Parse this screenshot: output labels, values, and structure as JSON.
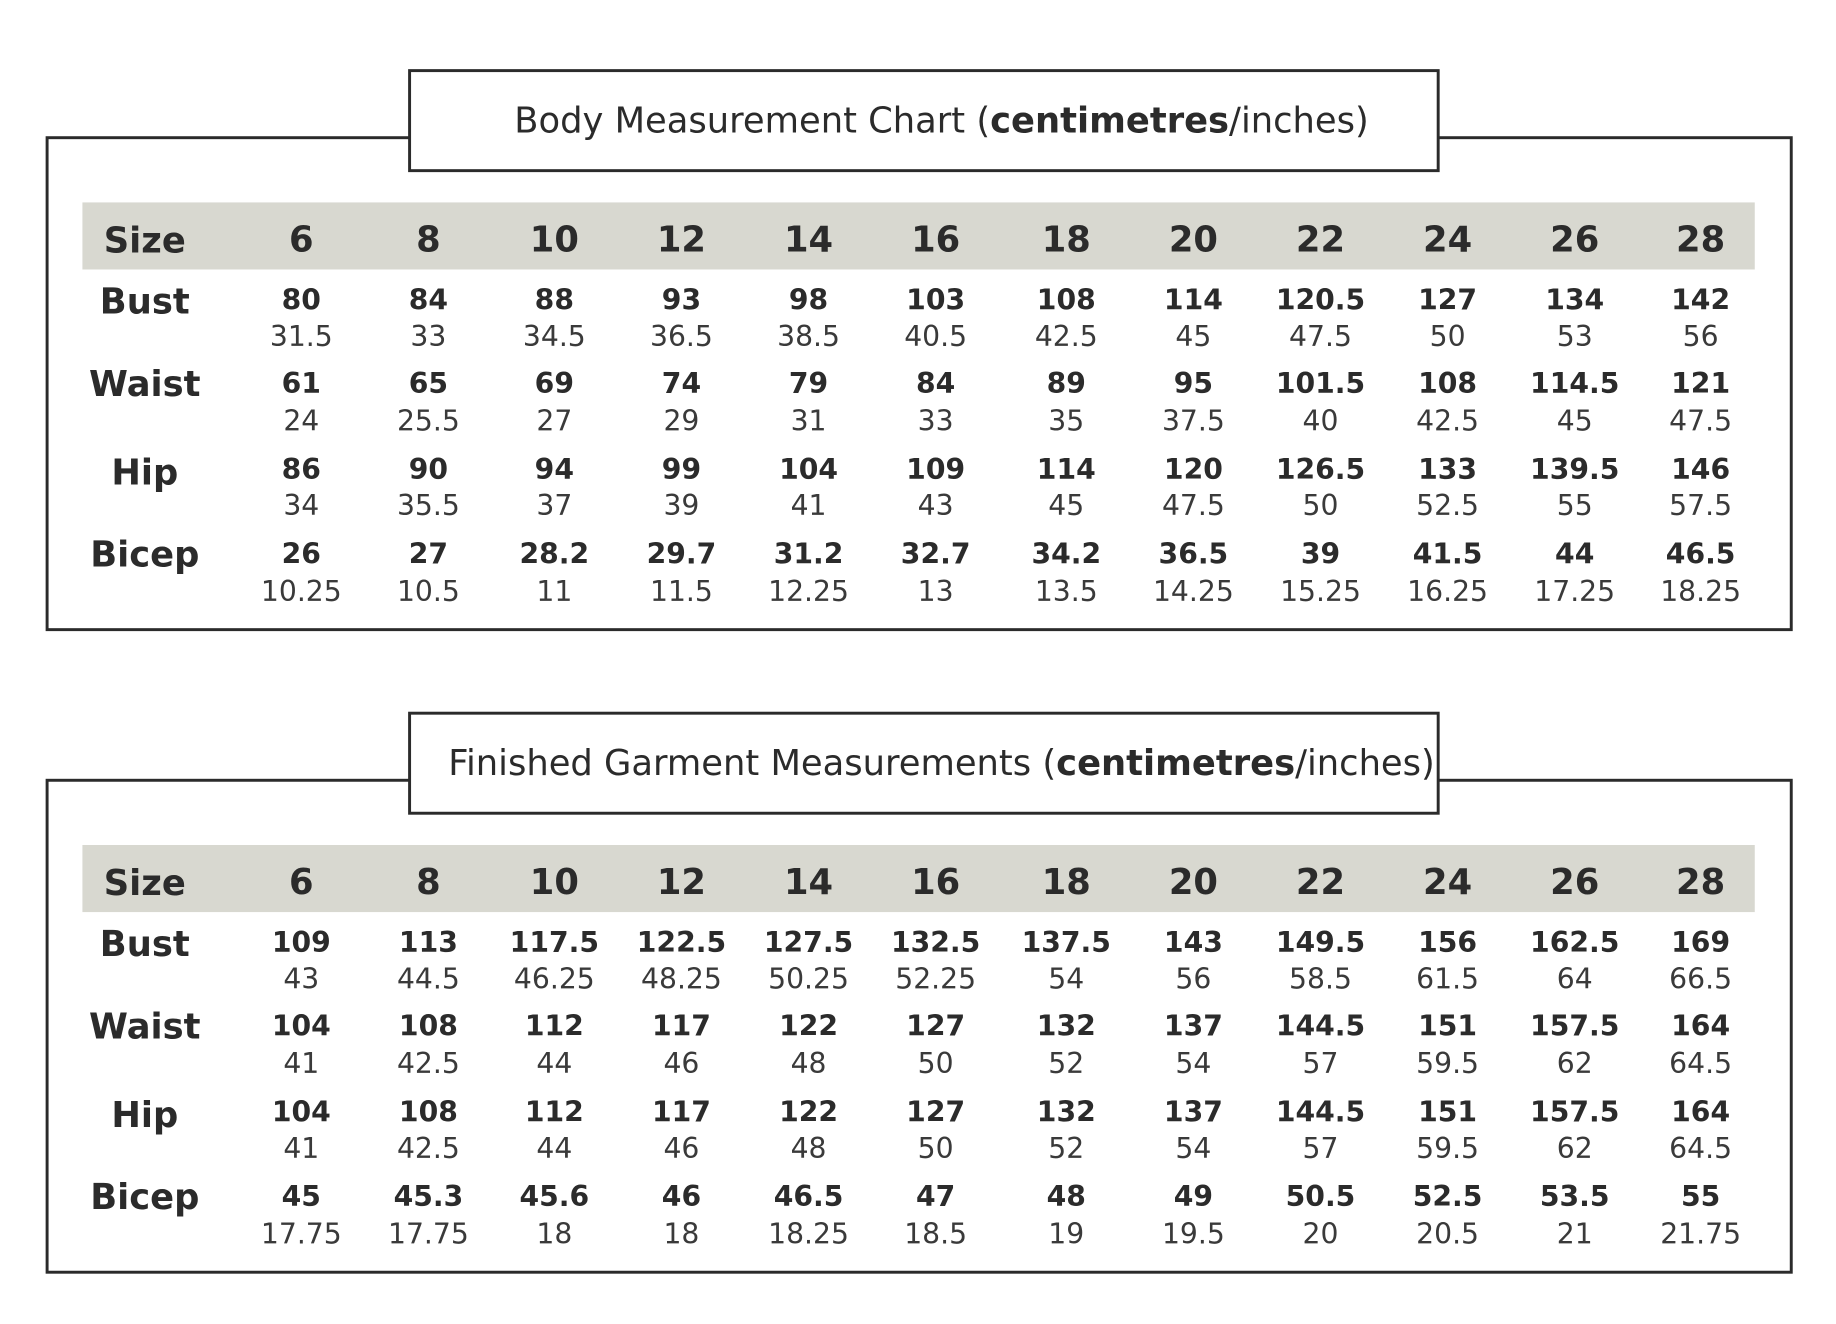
{
  "tables": [
    {
      "title": {
        "pre": "Body Measurement Chart (",
        "bold": "centimetres",
        "post": "/inches)"
      },
      "header_label": "Size",
      "sizes": [
        6,
        8,
        10,
        12,
        14,
        16,
        18,
        20,
        22,
        24,
        26,
        28
      ],
      "rows": [
        {
          "label": "Bust",
          "cm": [
            80,
            84,
            88,
            93,
            98,
            103,
            108,
            114,
            120.5,
            127,
            134,
            142
          ],
          "in": [
            31.5,
            33,
            34.5,
            36.5,
            38.5,
            40.5,
            42.5,
            45,
            47.5,
            50,
            53,
            56
          ]
        },
        {
          "label": "Waist",
          "cm": [
            61,
            65,
            69,
            74,
            79,
            84,
            89,
            95,
            101.5,
            108,
            114.5,
            121
          ],
          "in": [
            24,
            25.5,
            27,
            29,
            31,
            33,
            35,
            37.5,
            40,
            42.5,
            45,
            47.5
          ]
        },
        {
          "label": "Hip",
          "cm": [
            86,
            90,
            94,
            99,
            104,
            109,
            114,
            120,
            126.5,
            133,
            139.5,
            146
          ],
          "in": [
            34,
            35.5,
            37,
            39,
            41,
            43,
            45,
            47.5,
            50,
            52.5,
            55,
            57.5
          ]
        },
        {
          "label": "Bicep",
          "cm": [
            26,
            27,
            28.2,
            29.7,
            31.2,
            32.7,
            34.2,
            36.5,
            39,
            41.5,
            44,
            46.5
          ],
          "in": [
            10.25,
            10.5,
            11,
            11.5,
            12.25,
            13,
            13.5,
            14.25,
            15.25,
            16.25,
            17.25,
            18.25
          ]
        }
      ]
    },
    {
      "title": {
        "pre": "Finished Garment Measurements (",
        "bold": "centimetres",
        "post": "/inches)"
      },
      "header_label": "Size",
      "sizes": [
        6,
        8,
        10,
        12,
        14,
        16,
        18,
        20,
        22,
        24,
        26,
        28
      ],
      "rows": [
        {
          "label": "Bust",
          "cm": [
            109,
            113,
            117.5,
            122.5,
            127.5,
            132.5,
            137.5,
            143,
            149.5,
            156,
            162.5,
            169
          ],
          "in": [
            43,
            44.5,
            46.25,
            48.25,
            50.25,
            52.25,
            54,
            56,
            58.5,
            61.5,
            64,
            66.5
          ]
        },
        {
          "label": "Waist",
          "cm": [
            104,
            108,
            112,
            117,
            122,
            127,
            132,
            137,
            144.5,
            151,
            157.5,
            164
          ],
          "in": [
            41,
            42.5,
            44,
            46,
            48,
            50,
            52,
            54,
            57,
            59.5,
            62,
            64.5
          ]
        },
        {
          "label": "Hip",
          "cm": [
            104,
            108,
            112,
            117,
            122,
            127,
            132,
            137,
            144.5,
            151,
            157.5,
            164
          ],
          "in": [
            41,
            42.5,
            44,
            46,
            48,
            50,
            52,
            54,
            57,
            59.5,
            62,
            64.5
          ]
        },
        {
          "label": "Bicep",
          "cm": [
            45,
            45.3,
            45.6,
            46,
            46.5,
            47,
            48,
            49,
            50.5,
            52.5,
            53.5,
            55
          ],
          "in": [
            17.75,
            17.75,
            18,
            18,
            18.25,
            18.5,
            19,
            19.5,
            20,
            20.5,
            21,
            21.75
          ]
        }
      ]
    }
  ]
}
